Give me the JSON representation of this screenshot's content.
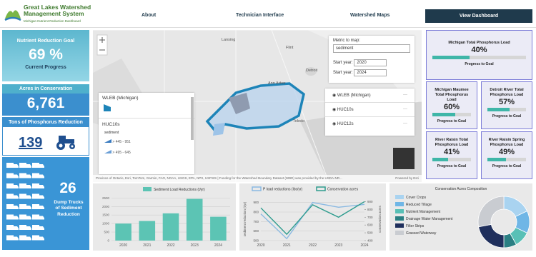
{
  "header": {
    "title": "Great Lakes Watershed Management System",
    "subtitle": "Michigan Nutrient Reduction Dashboard"
  },
  "nav": [
    "About",
    "Technician Interface",
    "Watershed Maps",
    "View Dashboard"
  ],
  "kpis": [
    {
      "title": "Nutrient Reduction Goal",
      "value": "69 %",
      "caption": "Current Progress"
    },
    {
      "title": "Acres in Conservation",
      "value": "6,761"
    },
    {
      "title": "Tons of Phosphorus Reduction",
      "value": "139"
    },
    {
      "value": "26",
      "caption": "Dump Trucks of Sediment Reduction"
    }
  ],
  "map": {
    "places": [
      "Lansing",
      "Flint",
      "Ann Arbor",
      "Detroit",
      "Toledo"
    ],
    "legend": {
      "layer": "WLEB (Michigan)",
      "sublayer": "HUC10s",
      "field": "sediment",
      "classes": [
        "> 445 - 951",
        "> 495 - 645"
      ]
    },
    "controls": {
      "metric_label": "Metric to map:",
      "metric": "sediment",
      "start_label": "Start year:",
      "start": "2020",
      "end_label": "Start year:",
      "end": "2024"
    },
    "layers": [
      "WLEB (Michigan)",
      "HUC10s",
      "HUC12s"
    ],
    "attribution": "Province of Ontario, Esri, TomTom, Garmin, FAO, NOAA, USGS, EPA, NPS, USFWS | Funding for the Watershed Boundary Dataset (WBD) was provided by the USDA-NR...",
    "powered": "Powered by Esri"
  },
  "goals": [
    {
      "title": "Michigan Total Phosphorus Load",
      "value": 40,
      "value_label": "40%",
      "caption": "Progress to Goal"
    },
    {
      "title": "Michigan Maumee Total Phosphorus Load",
      "value": 60,
      "value_label": "60%",
      "caption": "Progress to Goal"
    },
    {
      "title": "Detroit River Total Phosphorus Load",
      "value": 57,
      "value_label": "57%",
      "caption": "Progress to Goal"
    },
    {
      "title": "River Raisin Total Phosphorus Load",
      "value": 41,
      "value_label": "41%",
      "caption": "Progress to Goal"
    },
    {
      "title": "River Raisin Spring Phosphorus Load",
      "value": 49,
      "value_label": "49%",
      "caption": "Progress to Goal"
    }
  ],
  "chart_data": [
    {
      "type": "bar",
      "categories": [
        "2020",
        "2021",
        "2022",
        "2023",
        "2024"
      ],
      "series": [
        {
          "name": "Sediment Load Reductions (t/yr)",
          "color": "#5cc4b4",
          "values": [
            1000,
            1150,
            1600,
            2450,
            1400
          ]
        }
      ],
      "ylim": [
        0,
        2600
      ],
      "yticks": [
        0,
        500,
        1000,
        1500,
        2000,
        2500
      ],
      "grid": true
    },
    {
      "type": "line",
      "categories": [
        "2020",
        "2021",
        "2022",
        "2023",
        "2024"
      ],
      "y_label": "sediment reduction (t/yr)",
      "y2_label": "conservation acres",
      "series": [
        {
          "name": "P load reductions (lbs/yr)",
          "color": "#8ab9e2",
          "values": [
            780,
            520,
            900,
            850,
            880
          ]
        },
        {
          "name": "Conservation acres",
          "color": "#2e9c8e",
          "axis": "y2",
          "values": [
            820,
            480,
            860,
            700,
            900
          ]
        }
      ],
      "ylim": [
        500,
        950
      ],
      "yticks": [
        500,
        600,
        700,
        800,
        900
      ],
      "y2lim": [
        400,
        950
      ],
      "y2ticks": [
        400,
        500,
        600,
        700,
        800,
        900
      ],
      "grid": true
    },
    {
      "type": "pie",
      "title": "Conservation Acres Composition",
      "categories": [
        "Cover Crops",
        "Reduced Tillage",
        "Nutrient Management",
        "Drainage Water Management",
        "Filter Strips",
        "Grassed Waterway"
      ],
      "values": [
        18,
        14,
        10,
        8,
        22,
        28
      ],
      "colors": [
        "#a9d3f0",
        "#6fb6e6",
        "#58c0b6",
        "#2a7f83",
        "#1f2f5c",
        "#c9ccd1"
      ]
    }
  ]
}
